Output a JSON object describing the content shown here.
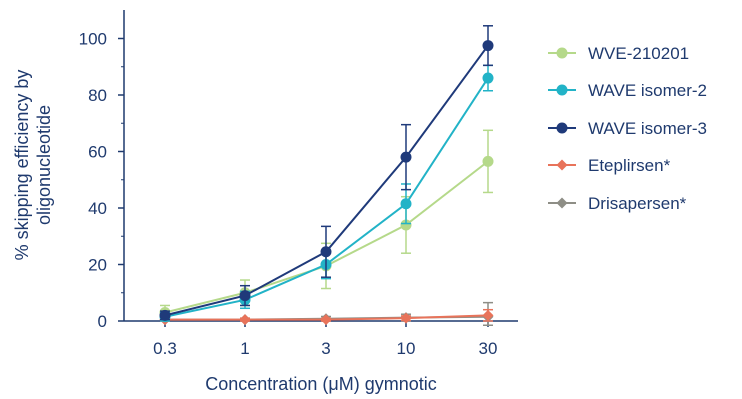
{
  "chart_data": {
    "type": "line",
    "title": "",
    "xlabel": "Concentration (μM) gymnotic",
    "ylabel_lines": [
      "% skipping efficiency by",
      "oligonucleotide"
    ],
    "x_scale": "log",
    "categories": [
      "0.3",
      "1",
      "3",
      "10",
      "30"
    ],
    "ylim": [
      0,
      110
    ],
    "yticks": [
      0,
      20,
      40,
      60,
      80,
      100
    ],
    "ytick_labels": [
      "0",
      "20",
      "40",
      "60",
      "80",
      "100"
    ],
    "grid": false,
    "legend_position": "right",
    "series": [
      {
        "name": "WVE-210201",
        "color": "#b5d98a",
        "marker": "circle",
        "values": [
          3,
          10,
          19.5,
          34,
          56.5
        ],
        "errors": [
          2.5,
          4.5,
          8,
          10,
          11
        ]
      },
      {
        "name": "WAVE isomer-2",
        "color": "#22b3c7",
        "marker": "circle",
        "values": [
          1.5,
          7.5,
          20,
          41.5,
          86
        ],
        "errors": [
          1.5,
          3,
          5,
          7,
          4.5
        ]
      },
      {
        "name": "WAVE isomer-3",
        "color": "#1f3a7a",
        "marker": "circle",
        "values": [
          2,
          9,
          24.5,
          58,
          97.5
        ],
        "errors": [
          1.5,
          3.5,
          9,
          11.5,
          7
        ]
      },
      {
        "name": "Eteplirsen*",
        "color": "#e8735a",
        "marker": "diamond",
        "values": [
          0.5,
          0.5,
          0.5,
          1,
          2
        ],
        "errors": [
          0.5,
          0.5,
          0.5,
          0.8,
          2
        ]
      },
      {
        "name": "Drisapersen*",
        "color": "#8e8e86",
        "marker": "diamond",
        "values": [
          0.5,
          0.5,
          0.8,
          1.2,
          1.5
        ],
        "errors": [
          0.5,
          0.5,
          0.8,
          1.2,
          5
        ]
      }
    ]
  }
}
